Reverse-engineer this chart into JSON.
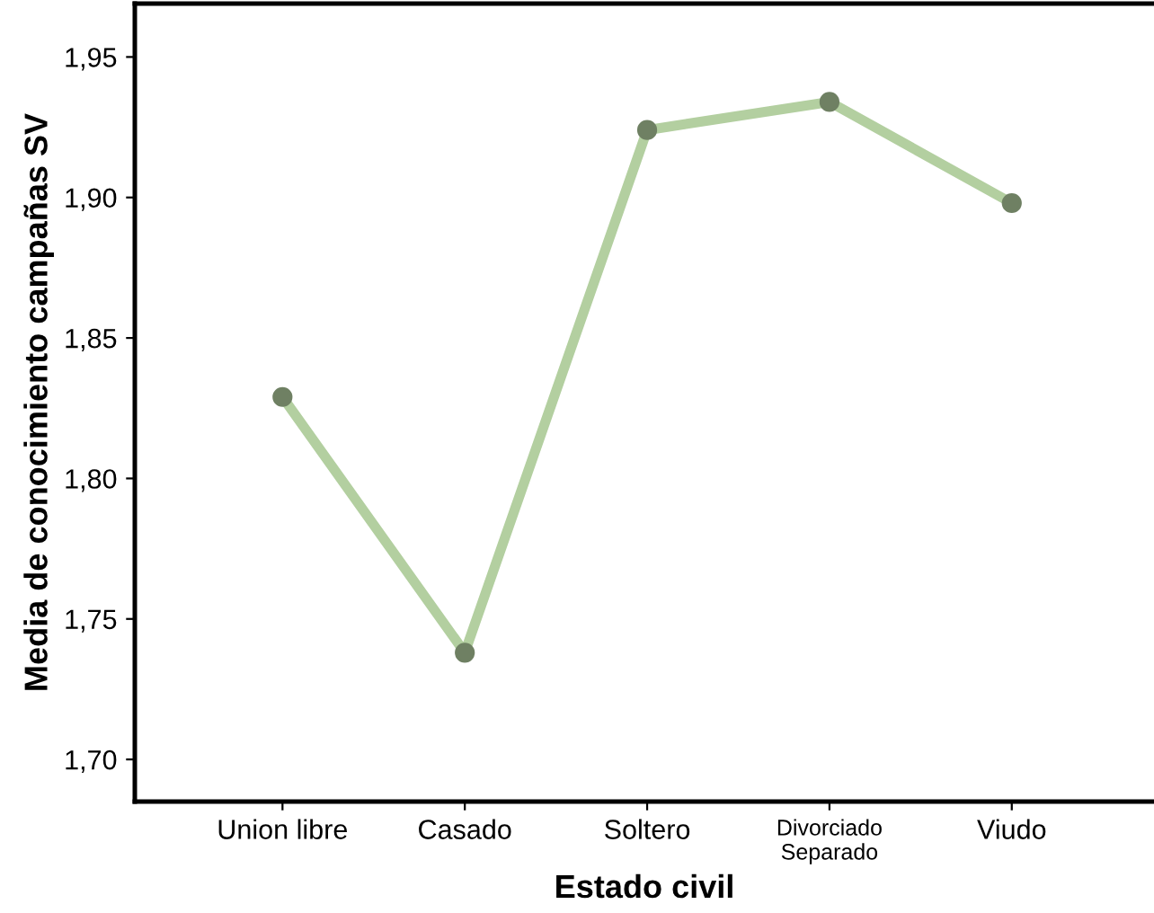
{
  "chart_data": {
    "type": "line",
    "xlabel": "Estado civil",
    "ylabel": "Media de conocimiento campañas SV",
    "categories": [
      "Union libre",
      "Casado",
      "Soltero",
      "Divorciado\nSeparado",
      "Viudo"
    ],
    "series": [
      {
        "color": "#b3cfa0",
        "values": [
          1.829,
          1.738,
          1.924,
          1.934,
          1.898
        ]
      }
    ],
    "marker": "circle",
    "line_style": "solid",
    "ylim": [
      1.685,
      1.969
    ],
    "yticks": [
      {
        "value": 1.7,
        "label": "1,70"
      },
      {
        "value": 1.75,
        "label": "1,75"
      },
      {
        "value": 1.8,
        "label": "1,80"
      },
      {
        "value": 1.85,
        "label": "1,85"
      },
      {
        "value": 1.9,
        "label": "1,90"
      },
      {
        "value": 1.95,
        "label": "1,95"
      }
    ],
    "grid": false,
    "legend": false
  }
}
